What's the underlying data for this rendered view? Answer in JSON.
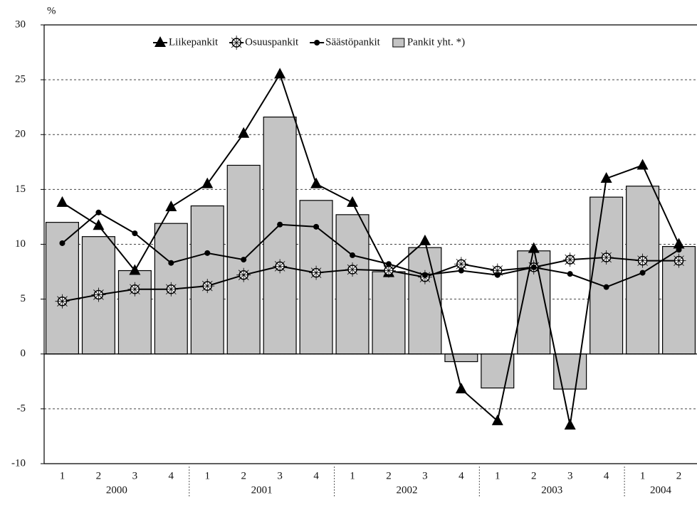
{
  "chart_data": {
    "type": "bar_line",
    "y_label": "%",
    "categories": [
      "1",
      "2",
      "3",
      "4",
      "1",
      "2",
      "3",
      "4",
      "1",
      "2",
      "3",
      "4",
      "1",
      "2",
      "3",
      "4",
      "1",
      "2"
    ],
    "year_groups": [
      "2000",
      "2001",
      "2002",
      "2003",
      "2004"
    ],
    "ylim": [
      -10,
      30
    ],
    "yticks": [
      -10,
      -5,
      0,
      5,
      10,
      15,
      20,
      25,
      30
    ],
    "grid": true,
    "series": [
      {
        "name": "Liikepankit",
        "kind": "line",
        "marker": "triangle",
        "color": "#000000",
        "values": [
          13.8,
          11.7,
          7.6,
          13.4,
          15.5,
          20.1,
          25.5,
          15.5,
          13.8,
          7.4,
          10.3,
          -3.2,
          -6.1,
          9.6,
          -6.5,
          16,
          17.2,
          10
        ]
      },
      {
        "name": "Osuuspankit",
        "kind": "line",
        "marker": "open-circle",
        "color": "#000000",
        "values": [
          4.8,
          5.4,
          5.9,
          5.9,
          6.2,
          7.2,
          8,
          7.4,
          7.7,
          7.6,
          7,
          8.2,
          7.6,
          7.9,
          8.6,
          8.8,
          8.5,
          8.5
        ]
      },
      {
        "name": "Säästöpankit",
        "kind": "line",
        "marker": "dot",
        "color": "#000000",
        "values": [
          10.1,
          12.9,
          11,
          8.3,
          9.2,
          8.6,
          11.8,
          11.6,
          9,
          8.2,
          7.2,
          7.6,
          7.2,
          7.9,
          7.3,
          6.1,
          7.4,
          9.5
        ]
      },
      {
        "name": "Pankit yht. *)",
        "kind": "bar",
        "color": "#c4c4c4",
        "values": [
          12,
          10.7,
          7.6,
          11.9,
          13.5,
          17.2,
          21.6,
          14,
          12.7,
          7.5,
          9.7,
          -0.7,
          -3.1,
          9.4,
          -3.2,
          14.3,
          15.3,
          9.8
        ]
      }
    ]
  }
}
